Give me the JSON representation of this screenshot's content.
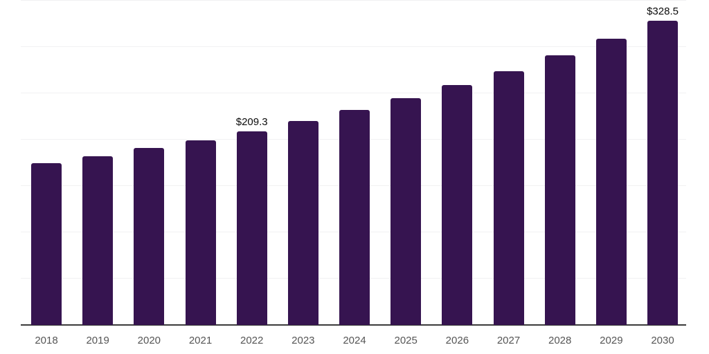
{
  "chart_data": {
    "type": "bar",
    "title": "",
    "xlabel": "",
    "ylabel": "",
    "categories": [
      "2018",
      "2019",
      "2020",
      "2021",
      "2022",
      "2023",
      "2024",
      "2025",
      "2026",
      "2027",
      "2028",
      "2029",
      "2030"
    ],
    "values": [
      174.3,
      182.3,
      190.8,
      199.2,
      209.3,
      220.2,
      231.8,
      244.5,
      259.2,
      273.8,
      290.9,
      309.3,
      328.5
    ],
    "labeled_points": [
      {
        "category": "2022",
        "label": "$209.3"
      },
      {
        "category": "2030",
        "label": "$328.5"
      }
    ],
    "ylim": [
      0,
      350
    ],
    "gridline_step": 50,
    "grid": true,
    "y_tick_labels_visible": false,
    "legend_position": "none"
  },
  "colors": {
    "background": "#ffffff",
    "bar": "#361450",
    "gridline": "#f1f1f2",
    "axis_line": "#3a3a3a",
    "x_label": "#555555",
    "data_label": "#0a0a0a"
  }
}
